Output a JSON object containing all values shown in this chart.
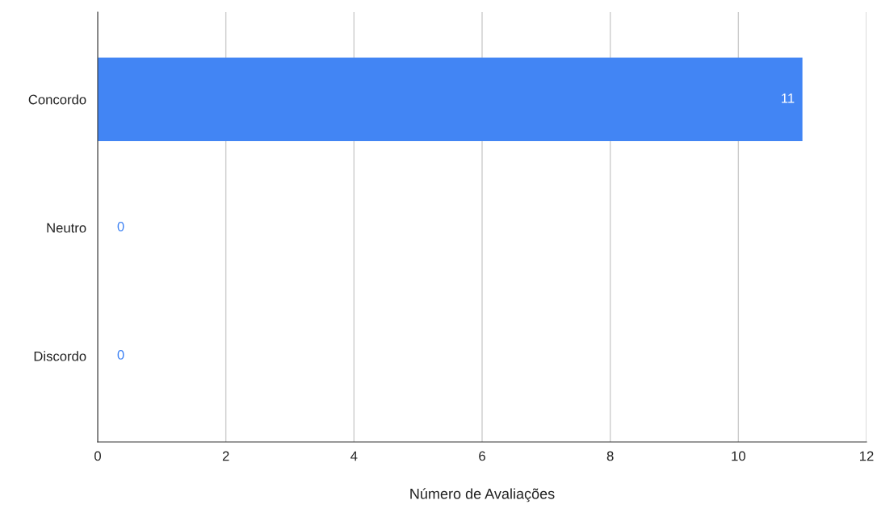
{
  "chart_data": {
    "type": "bar",
    "orientation": "horizontal",
    "xlabel": "Número de Avaliações",
    "categories": [
      "Concordo",
      "Neutro",
      "Discordo"
    ],
    "values": [
      11,
      0,
      0
    ],
    "color": "#4285f4",
    "xlim": [
      0,
      12
    ],
    "xticks": [
      0,
      2,
      4,
      6,
      8,
      10,
      12
    ],
    "grid": "x",
    "data_labels": true,
    "legend": false
  }
}
